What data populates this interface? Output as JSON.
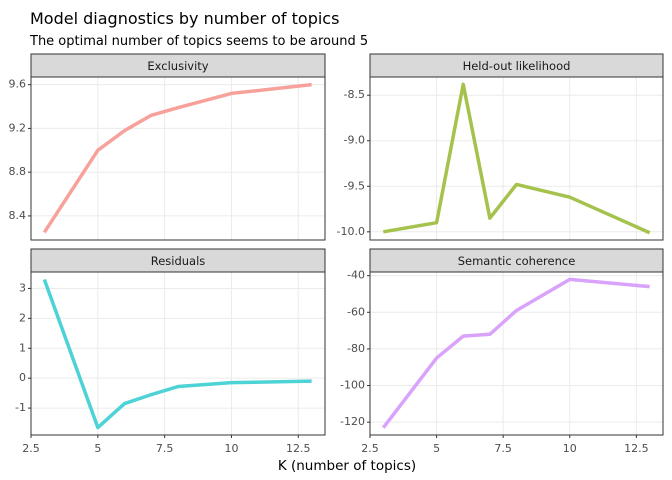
{
  "title": "Model diagnostics by number of topics",
  "subtitle": "The optimal number of topics seems to be around 5",
  "x_label": "K (number of topics)",
  "chart_data": [
    {
      "type": "line",
      "title": "Exclusivity",
      "x": [
        3,
        5,
        6,
        7,
        8,
        10,
        13
      ],
      "values": [
        8.25,
        9.0,
        9.18,
        9.32,
        9.39,
        9.52,
        9.6
      ],
      "color": "#f8a19b",
      "xlim": [
        2.5,
        13.5
      ],
      "xticks": [
        2.5,
        5,
        7.5,
        10,
        12.5
      ],
      "ylim": [
        8.18,
        9.67
      ],
      "yticks": [
        8.4,
        8.8,
        9.2,
        9.6
      ],
      "grid": true
    },
    {
      "type": "line",
      "title": "Held-out likelihood",
      "x": [
        3,
        5,
        6,
        7,
        8,
        10,
        13
      ],
      "values": [
        -10.0,
        -9.9,
        -8.38,
        -9.85,
        -9.48,
        -9.62,
        -10.01
      ],
      "color": "#a5c24d",
      "xlim": [
        2.5,
        13.5
      ],
      "xticks": [
        2.5,
        5,
        7.5,
        10,
        12.5
      ],
      "ylim": [
        -10.09,
        -8.3
      ],
      "yticks": [
        {
          "value": -10,
          "label": "-10.0"
        },
        -9.5,
        {
          "value": -9,
          "label": "-9.0"
        },
        -8.5
      ],
      "grid": true
    },
    {
      "type": "line",
      "title": "Residuals",
      "x": [
        3,
        5,
        6,
        7,
        8,
        10,
        13
      ],
      "values": [
        3.3,
        -1.65,
        -0.85,
        -0.55,
        -0.28,
        -0.15,
        -0.1
      ],
      "color": "#4dd2d6",
      "xlim": [
        2.5,
        13.5
      ],
      "xticks": [
        2.5,
        5,
        7.5,
        10,
        12.5
      ],
      "ylim": [
        -1.9,
        3.55
      ],
      "yticks": [
        -1,
        0,
        1,
        2,
        3
      ],
      "grid": true
    },
    {
      "type": "line",
      "title": "Semantic coherence",
      "x": [
        3,
        5,
        6,
        7,
        8,
        10,
        13
      ],
      "values": [
        -123,
        -85,
        -73,
        -72,
        -59,
        -42,
        -46
      ],
      "color": "#d9a3fb",
      "xlim": [
        2.5,
        13.5
      ],
      "xticks": [
        2.5,
        5,
        7.5,
        10,
        12.5
      ],
      "ylim": [
        -127,
        -38
      ],
      "yticks": [
        -120,
        -100,
        -80,
        -60,
        -40
      ],
      "grid": true
    }
  ]
}
